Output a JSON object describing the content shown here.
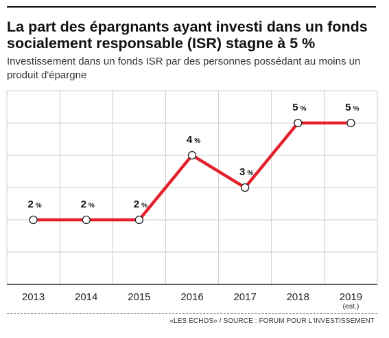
{
  "header": {
    "title": "La part des épargnants ayant investi dans un fonds socialement responsable (ISR) stagne à 5 %",
    "subtitle": "Investissement dans un fonds ISR par des personnes possédant au moins un produit d'épargne"
  },
  "footer": {
    "source": "«LES ÉCHOS» / SOURCE : FORUM POUR L'INVESTISSEMENT"
  },
  "colors": {
    "line": "#e3202b",
    "grid": "#cccccc",
    "marker_fill": "#ffffff",
    "marker_stroke": "#222222"
  },
  "chart_data": {
    "type": "line",
    "title": "La part des épargnants ayant investi dans un fonds socialement responsable (ISR) stagne à 5 %",
    "subtitle": "Investissement dans un fonds ISR par des personnes possédant au moins un produit d'épargne",
    "categories": [
      "2013",
      "2014",
      "2015",
      "2016",
      "2017",
      "2018",
      "2019"
    ],
    "category_notes": [
      "",
      "",
      "",
      "",
      "",
      "",
      "(est.)"
    ],
    "values": [
      2,
      2,
      2,
      4,
      3,
      5,
      5
    ],
    "data_labels": [
      {
        "num": "2",
        "unit": "%"
      },
      {
        "num": "2",
        "unit": "%"
      },
      {
        "num": "2",
        "unit": "%"
      },
      {
        "num": "4",
        "unit": "%"
      },
      {
        "num": "3",
        "unit": "%"
      },
      {
        "num": "5",
        "unit": "%"
      },
      {
        "num": "5",
        "unit": "%"
      }
    ],
    "unit": "%",
    "ylim": [
      0,
      6
    ],
    "grid": true,
    "xlabel": "",
    "ylabel": ""
  }
}
